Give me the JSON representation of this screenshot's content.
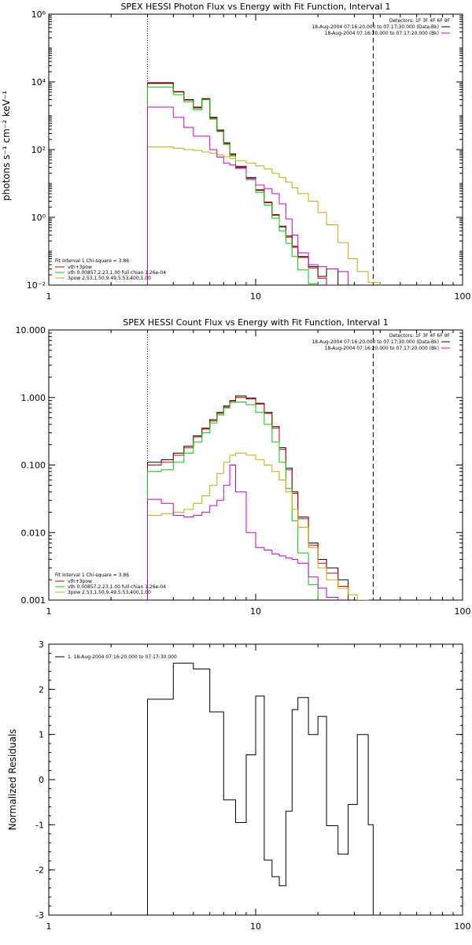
{
  "chart_data": [
    {
      "type": "line",
      "title": "SPEX HESSI Photon Flux vs Energy with Fit Function, Interval 1",
      "ylabel": "photons s⁻¹ cm⁻² keV⁻¹",
      "xlabel": "",
      "xscale": "log",
      "yscale": "log",
      "xlim": [
        1,
        100
      ],
      "ylim": [
        0.01,
        1000000
      ],
      "xticklabels": [
        "1",
        "10",
        "100"
      ],
      "yticklabels": [
        "10⁻²",
        "10⁰",
        "10²",
        "10⁴",
        "10⁶"
      ],
      "vlines": {
        "dotted": 3,
        "dashed": 37
      },
      "header": {
        "detectors": "Detectors: 1F 3F 4F 6F 9F",
        "lines": [
          {
            "text": "18-Aug-2004 07:16:20.000 to 07:17:30.000 (Data-Bk)",
            "color": "#000000"
          },
          {
            "text": "18-Aug-2004 07:16:20.000 to 07:17:20.000 (Bk)",
            "color": "#cc00cc"
          }
        ]
      },
      "legend": {
        "title": "Fit Interval 1    Chi-square = 3.86",
        "items": [
          {
            "text": "vth+3pow",
            "color": "#cc0000"
          },
          {
            "text": "vth 0.00857,2.23,1.00   full chian 1.26e-04",
            "color": "#00cc00"
          },
          {
            "text": "3pow 2.53,1.50,9.49,5.53,400,1.00",
            "color": "#ccaa00"
          }
        ]
      },
      "x_edges": [
        3,
        3.5,
        4,
        4.5,
        5,
        5.5,
        6,
        6.5,
        7,
        7.5,
        8,
        9,
        10,
        11,
        12,
        13,
        14,
        15,
        16,
        18,
        20,
        22,
        25,
        28,
        31,
        35,
        40
      ],
      "series": [
        {
          "name": "Data-Bk",
          "color": "#000000",
          "values": [
            9500,
            9500,
            5200,
            3000,
            1800,
            3200,
            900,
            380,
            160,
            75,
            32,
            15,
            6.5,
            2.8,
            1.2,
            0.55,
            0.28,
            0.14,
            0.07,
            0.035,
            0.018,
            0.03,
            null,
            null,
            null,
            null
          ]
        },
        {
          "name": "vth+3pow",
          "color": "#cc0000",
          "values": [
            9000,
            9000,
            5000,
            2900,
            1700,
            3100,
            850,
            360,
            150,
            70,
            30,
            14,
            6.2,
            2.7,
            1.15,
            0.52,
            0.26,
            0.13,
            0.065,
            0.032,
            0.016,
            0.01,
            null,
            null,
            null,
            null
          ]
        },
        {
          "name": "vth",
          "color": "#00cc00",
          "values": [
            7000,
            7000,
            4200,
            2600,
            1500,
            3000,
            800,
            340,
            140,
            65,
            28,
            13,
            5.5,
            2.3,
            0.95,
            0.4,
            0.17,
            0.07,
            0.028,
            0.011,
            null,
            null,
            null,
            null,
            null,
            null
          ]
        },
        {
          "name": "3pow",
          "color": "#ccaa00",
          "values": [
            120,
            120,
            110,
            100,
            95,
            85,
            78,
            70,
            62,
            55,
            47,
            40,
            33,
            27,
            20,
            15,
            11,
            7.5,
            5,
            3,
            1.4,
            0.6,
            0.18,
            0.06,
            0.025,
            0.012
          ]
        },
        {
          "name": "Bk",
          "color": "#cc00cc",
          "values": [
            1800,
            1800,
            900,
            450,
            250,
            250,
            100,
            60,
            40,
            35,
            28,
            14,
            9,
            7,
            5,
            2.5,
            0.9,
            0.3,
            0.09,
            0.04,
            0.035,
            0.03,
            0.025,
            null,
            null,
            null
          ]
        }
      ]
    },
    {
      "type": "line",
      "title": "SPEX HESSI Count Flux vs Energy with Fit Function, Interval 1",
      "xlabel": "",
      "ylabel": "",
      "xscale": "log",
      "yscale": "log",
      "xlim": [
        1,
        100
      ],
      "ylim": [
        0.001,
        10
      ],
      "xticklabels": [
        "1",
        "10",
        "100"
      ],
      "yticklabels": [
        "0.001",
        "0.010",
        "0.100",
        "1.000",
        "10.000"
      ],
      "vlines": {
        "dotted": 3,
        "dashed": 37
      },
      "header": {
        "detectors": "Detectors: 1F 3F 4F 6F 9F",
        "lines": [
          {
            "text": "18-Aug-2004 07:16:20.000 to 07:17:30.000 (Data-Bk)",
            "color": "#000000"
          },
          {
            "text": "18-Aug-2004 07:16:20.000 to 07:17:20.000 (Bk)",
            "color": "#cc00cc"
          }
        ]
      },
      "legend": {
        "title": "Fit Interval 1    Chi-square = 3.86",
        "items": [
          {
            "text": "vth+3pow",
            "color": "#cc0000"
          },
          {
            "text": "vth 0.00857,2.23,1.00   full chian 1.26e-04",
            "color": "#00cc00"
          },
          {
            "text": "3pow 2.53,1.50,9.49,5.53,400,1.00",
            "color": "#ccaa00"
          }
        ]
      },
      "x_edges": [
        3,
        3.5,
        4,
        4.5,
        5,
        5.5,
        6,
        6.5,
        7,
        7.5,
        8,
        9,
        10,
        11,
        12,
        13,
        14,
        15,
        16,
        18,
        20,
        22,
        25,
        28,
        31,
        35,
        40,
        45
      ],
      "series": [
        {
          "name": "Data-Bk",
          "color": "#000000",
          "values": [
            0.11,
            0.12,
            0.15,
            0.19,
            0.27,
            0.35,
            0.47,
            0.6,
            0.75,
            0.9,
            1.05,
            0.98,
            0.82,
            0.6,
            0.37,
            0.18,
            0.09,
            0.04,
            0.017,
            0.007,
            0.004,
            0.003,
            0.002,
            null,
            null,
            null,
            null
          ]
        },
        {
          "name": "vth+3pow",
          "color": "#cc0000",
          "values": [
            0.1,
            0.11,
            0.14,
            0.18,
            0.26,
            0.34,
            0.45,
            0.58,
            0.72,
            0.88,
            1.0,
            0.95,
            0.8,
            0.58,
            0.35,
            0.17,
            0.085,
            0.038,
            0.016,
            0.0065,
            0.0035,
            0.0025,
            0.0016,
            null,
            null,
            null,
            null
          ]
        },
        {
          "name": "vth",
          "color": "#00cc00",
          "values": [
            0.08,
            0.085,
            0.11,
            0.15,
            0.22,
            0.3,
            0.42,
            0.55,
            0.7,
            0.84,
            0.86,
            0.78,
            0.6,
            0.4,
            0.22,
            0.11,
            0.045,
            0.015,
            0.005,
            0.0017,
            null,
            null,
            null,
            null,
            null,
            null,
            null
          ]
        },
        {
          "name": "3pow",
          "color": "#ccaa00",
          "values": [
            0.018,
            0.019,
            0.02,
            0.022,
            0.027,
            0.035,
            0.05,
            0.075,
            0.11,
            0.14,
            0.15,
            0.14,
            0.12,
            0.1,
            0.08,
            0.06,
            0.04,
            0.022,
            0.012,
            0.006,
            0.003,
            0.002,
            0.0015,
            0.0012,
            0.001,
            null,
            null
          ]
        },
        {
          "name": "Bk",
          "color": "#cc00cc",
          "values": [
            0.031,
            0.027,
            0.018,
            0.017,
            0.018,
            0.02,
            0.025,
            0.03,
            0.05,
            0.1,
            0.04,
            0.01,
            0.006,
            0.0055,
            0.0048,
            0.0045,
            0.0042,
            0.004,
            0.0035,
            0.0022,
            0.0015,
            0.0011,
            null,
            null,
            null,
            null,
            null
          ]
        }
      ]
    },
    {
      "type": "line",
      "title": "",
      "xlabel": "",
      "ylabel": "Normalized Residuals",
      "xscale": "log",
      "yscale": "linear",
      "xlim": [
        1,
        100
      ],
      "ylim": [
        -3,
        3
      ],
      "xticklabels": [
        "1",
        "10",
        "100"
      ],
      "yticklabels": [
        "-3",
        "-2",
        "-1",
        "0",
        "1",
        "2",
        "3"
      ],
      "legend": {
        "title": "",
        "items": [
          {
            "text": "1. 18-Aug-2004 07:16:20.000 to 07:17:30.000",
            "color": "#000000"
          }
        ]
      },
      "x_edges": [
        3,
        4,
        5,
        6,
        7,
        8,
        9,
        10,
        11,
        12,
        13,
        14,
        15,
        16,
        18,
        20,
        22,
        25,
        28,
        31,
        35,
        37
      ],
      "series": [
        {
          "name": "1. 18-Aug-2004 07:16:20.000 to 07:17:30.000",
          "color": "#000000",
          "values": [
            1.78,
            2.58,
            2.45,
            1.5,
            -0.45,
            -0.95,
            0.55,
            1.85,
            -1.78,
            -2.15,
            -2.35,
            -0.7,
            1.55,
            1.82,
            1.0,
            1.4,
            -1.02,
            -1.65,
            -0.55,
            1.0,
            -1.0
          ]
        }
      ]
    }
  ]
}
